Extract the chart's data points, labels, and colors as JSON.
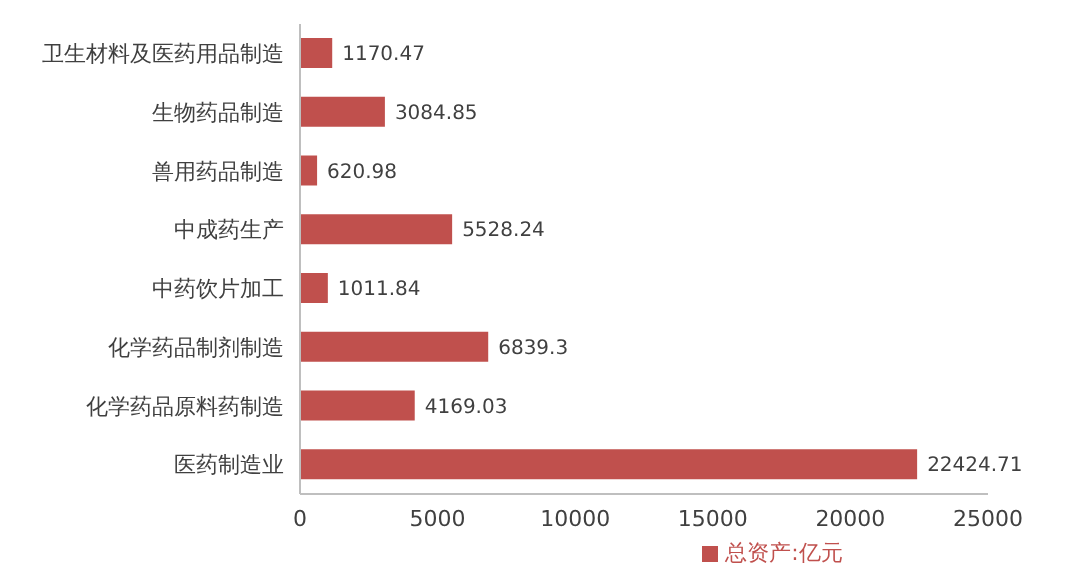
{
  "chart_data": {
    "type": "bar",
    "orientation": "horizontal",
    "categories": [
      "卫生材料及医药用品制造",
      "生物药品制造",
      "兽用药品制造",
      "中成药生产",
      "中药饮片加工",
      "化学药品制剂制造",
      "化学药品原料药制造",
      "医药制造业"
    ],
    "series": [
      {
        "name": "总资产:亿元",
        "color": "#c0504d",
        "values": [
          1170.47,
          3084.85,
          620.98,
          5528.24,
          1011.84,
          6839.3,
          4169.03,
          22424.71
        ]
      }
    ],
    "xlim": [
      0,
      25000
    ],
    "xticks": [
      0,
      5000,
      10000,
      15000,
      20000,
      25000
    ],
    "data_labels": true,
    "legend": "bottom",
    "grid": false
  }
}
